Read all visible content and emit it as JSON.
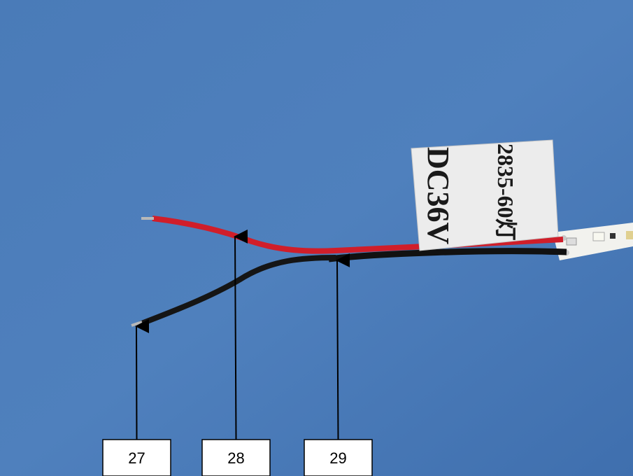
{
  "tag": {
    "lines": [
      "2835-60灯",
      "DC36V"
    ]
  },
  "callouts": [
    {
      "label": "27"
    },
    {
      "label": "28"
    },
    {
      "label": "29"
    }
  ]
}
